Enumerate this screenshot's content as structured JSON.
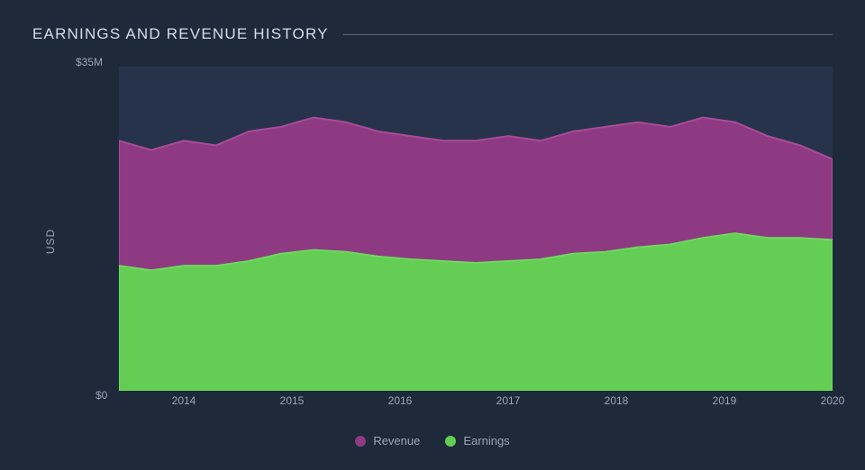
{
  "chart": {
    "type": "area",
    "title": "EARNINGS AND REVENUE HISTORY",
    "title_color": "#d5dce6",
    "title_fontsize": 17,
    "title_letter_spacing": 1.2,
    "title_rule_color": "#5a6478",
    "background_color": "#1e2a3a",
    "plot_background_color": "#26334a",
    "y_axis": {
      "label": "USD",
      "top_tick": "$35M",
      "bottom_tick": "$0",
      "label_color": "#9aa6b8",
      "label_fontsize": 12,
      "min": 0,
      "max": 35
    },
    "x_axis": {
      "ticks": [
        2014,
        2015,
        2016,
        2017,
        2018,
        2019,
        2020
      ],
      "data_start": 2013.4,
      "data_end": 2020.0,
      "label_color": "#9aa6b8",
      "label_fontsize": 12
    },
    "series": [
      {
        "name": "Revenue",
        "color": "#8e3a82",
        "stroke": "#a74c99",
        "x": [
          2013.4,
          2013.7,
          2014.0,
          2014.3,
          2014.6,
          2014.9,
          2015.2,
          2015.5,
          2015.8,
          2016.1,
          2016.4,
          2016.7,
          2017.0,
          2017.3,
          2017.6,
          2017.9,
          2018.2,
          2018.5,
          2018.8,
          2019.1,
          2019.4,
          2019.7,
          2020.0
        ],
        "values": [
          27.0,
          26.0,
          27.0,
          26.5,
          28.0,
          28.5,
          29.5,
          29.0,
          28.0,
          27.5,
          27.0,
          27.0,
          27.5,
          27.0,
          28.0,
          28.5,
          29.0,
          28.5,
          29.5,
          29.0,
          27.5,
          26.5,
          25.0
        ]
      },
      {
        "name": "Earnings",
        "color": "#63cd54",
        "stroke": "#6ed95d",
        "x": [
          2013.4,
          2013.7,
          2014.0,
          2014.3,
          2014.6,
          2014.9,
          2015.2,
          2015.5,
          2015.8,
          2016.1,
          2016.4,
          2016.7,
          2017.0,
          2017.3,
          2017.6,
          2017.9,
          2018.2,
          2018.5,
          2018.8,
          2019.1,
          2019.4,
          2019.7,
          2020.0
        ],
        "values": [
          13.5,
          13.0,
          13.5,
          13.5,
          14.0,
          14.8,
          15.2,
          15.0,
          14.5,
          14.2,
          14.0,
          13.8,
          14.0,
          14.2,
          14.8,
          15.0,
          15.5,
          15.8,
          16.5,
          17.0,
          16.5,
          16.5,
          16.3
        ]
      }
    ],
    "legend": {
      "items": [
        {
          "label": "Revenue",
          "color": "#8e3a82"
        },
        {
          "label": "Earnings",
          "color": "#63cd54"
        }
      ],
      "text_color": "#9aa6b8",
      "fontsize": 13
    }
  }
}
